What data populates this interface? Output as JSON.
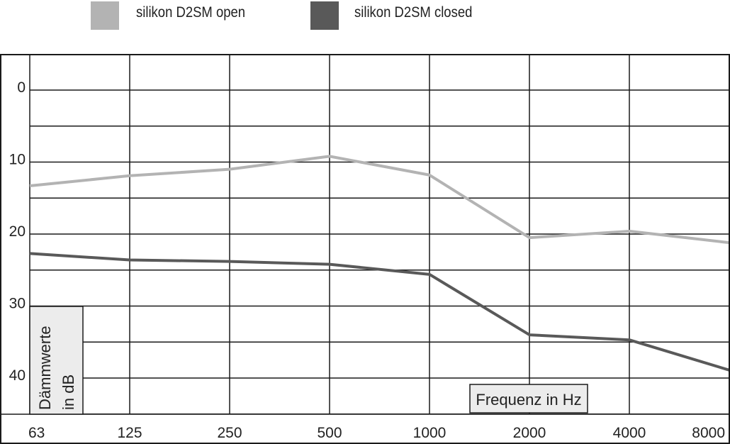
{
  "chart_data": {
    "type": "line",
    "categories": [
      "63",
      "125",
      "250",
      "500",
      "1000",
      "2000",
      "4000",
      "8000"
    ],
    "xlabel": "Frequenz in Hz",
    "ylabel": [
      "Dämmwerte",
      "in dB"
    ],
    "y_ticks": [
      "0",
      "10",
      "20",
      "30",
      "40"
    ],
    "ylim": [
      -5,
      45
    ],
    "y_inverted": true,
    "grid": true,
    "legend_position": "top",
    "series": [
      {
        "name": "silikon D2SM open",
        "color": "#b3b3b3",
        "values": [
          13.3,
          11.9,
          11.0,
          9.2,
          11.8,
          20.5,
          19.6,
          21.2
        ]
      },
      {
        "name": "silikon D2SM closed",
        "color": "#595959",
        "values": [
          22.7,
          23.6,
          23.8,
          24.2,
          25.6,
          34.0,
          34.7,
          38.9
        ]
      }
    ]
  }
}
